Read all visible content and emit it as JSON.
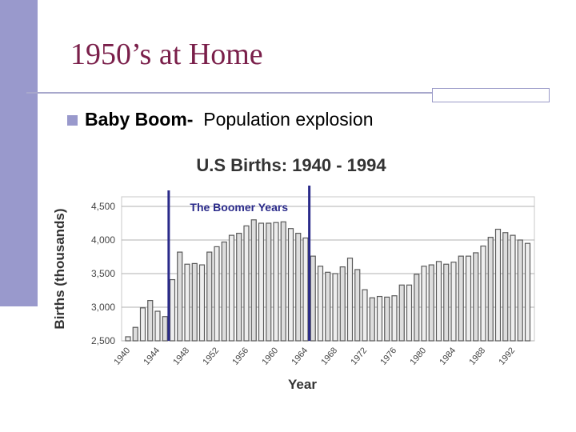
{
  "slide": {
    "title": "1950’s at Home",
    "bullet": {
      "bold": "Baby Boom-",
      "text": "Population explosion"
    }
  },
  "colors": {
    "title": "#7a1f4a",
    "accent": "#9999cc",
    "bar_dark": "#555555",
    "bar_light": "#e0e0e0",
    "marker": "#2a2a8a"
  },
  "chart_data": {
    "type": "bar",
    "title": "U.S Births: 1940 - 1994",
    "xlabel": "Year",
    "ylabel": "Births (thousands)",
    "ylim": [
      2500,
      4500
    ],
    "yticks": [
      "2,500",
      "3,000",
      "3,500",
      "4,000",
      "4,500"
    ],
    "xtick_labels": [
      "1940",
      "1944",
      "1948",
      "1952",
      "1956",
      "1960",
      "1964",
      "1968",
      "1972",
      "1976",
      "1980",
      "1984",
      "1988",
      "1992"
    ],
    "grid": true,
    "years": [
      1940,
      1941,
      1942,
      1943,
      1944,
      1945,
      1946,
      1947,
      1948,
      1949,
      1950,
      1951,
      1952,
      1953,
      1954,
      1955,
      1956,
      1957,
      1958,
      1959,
      1960,
      1961,
      1962,
      1963,
      1964,
      1965,
      1966,
      1967,
      1968,
      1969,
      1970,
      1971,
      1972,
      1973,
      1974,
      1975,
      1976,
      1977,
      1978,
      1979,
      1980,
      1981,
      1982,
      1983,
      1984,
      1985,
      1986,
      1987,
      1988,
      1989,
      1990,
      1991,
      1992,
      1993,
      1994
    ],
    "values": [
      2560,
      2700,
      2990,
      3100,
      2940,
      2860,
      3410,
      3820,
      3640,
      3650,
      3630,
      3820,
      3900,
      3970,
      4070,
      4100,
      4210,
      4300,
      4250,
      4250,
      4260,
      4270,
      4170,
      4100,
      4030,
      3760,
      3610,
      3520,
      3500,
      3600,
      3730,
      3560,
      3260,
      3140,
      3160,
      3150,
      3170,
      3330,
      3330,
      3490,
      3610,
      3630,
      3680,
      3640,
      3670,
      3760,
      3760,
      3810,
      3910,
      4040,
      4160,
      4110,
      4070,
      4000,
      3950
    ],
    "annotation": "The Boomer Years",
    "boom_start": 1945.5,
    "boom_end": 1964.5
  }
}
